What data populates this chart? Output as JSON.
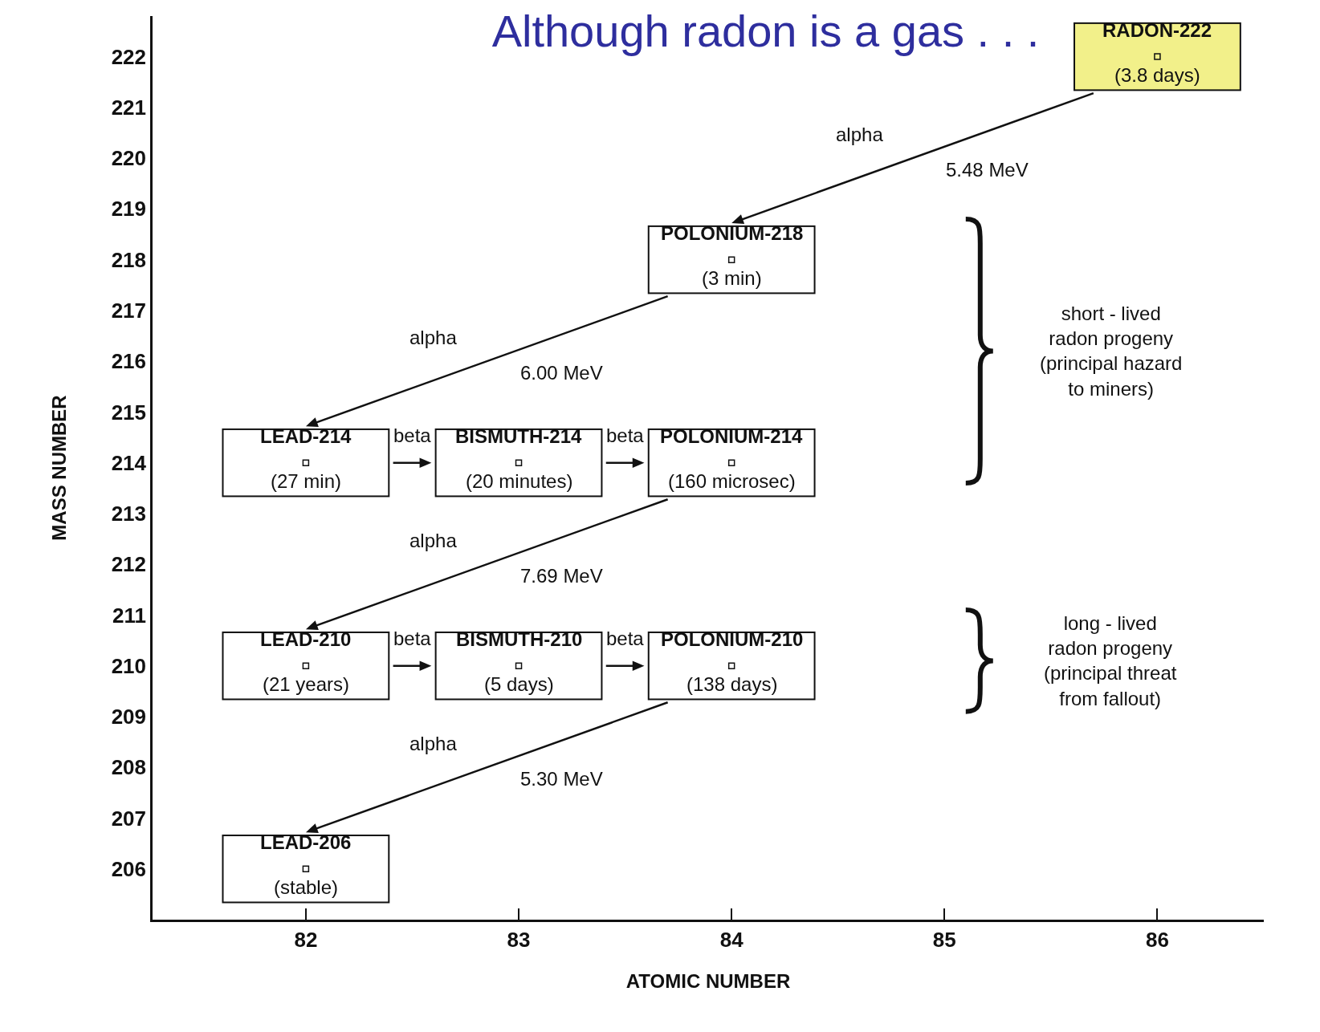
{
  "chart_data": {
    "type": "scatter",
    "title": "Although radon is a gas . . .",
    "xlabel": "ATOMIC NUMBER",
    "ylabel": "MASS NUMBER",
    "x": [
      86,
      84,
      82,
      83,
      84,
      82,
      83,
      84,
      82
    ],
    "values": [
      222,
      218,
      214,
      214,
      214,
      210,
      210,
      210,
      206
    ],
    "value_labels": [
      "RADON-222\n(3.8 days)",
      "POLONIUM-218\n(3 min)",
      "LEAD-214\n(27 min)",
      "BISMUTH-214\n(20 minutes)",
      "POLONIUM-214\n(160 microsec)",
      "LEAD-210\n(21 years)",
      "BISMUTH-210\n(5 days)",
      "POLONIUM-210\n(138 days)",
      "LEAD-206\n(stable)"
    ],
    "colors": [
      "#f2f08a",
      "#ffffff",
      "#ffffff",
      "#ffffff",
      "#ffffff",
      "#ffffff",
      "#ffffff",
      "#ffffff",
      "#ffffff"
    ],
    "xlim": [
      81.28,
      86.5
    ],
    "xticks": [
      82,
      83,
      84,
      85,
      86
    ],
    "ylim": [
      205,
      222.8
    ],
    "yticks": [
      206,
      207,
      208,
      209,
      210,
      211,
      212,
      213,
      214,
      215,
      216,
      217,
      218,
      219,
      220,
      221,
      222
    ],
    "grid": false,
    "legend": false,
    "marker": "square",
    "annotations": [
      "alpha",
      "5.48 MeV",
      "alpha",
      "6.00 MeV",
      "beta",
      "beta",
      "alpha",
      "7.69 MeV",
      "beta",
      "beta",
      "alpha",
      "5.30 MeV",
      "short - lived\nradon progeny\n(principal hazard\nto miners)",
      "long - lived\nradon progeny\n(principal threat\nfrom fallout)"
    ]
  }
}
